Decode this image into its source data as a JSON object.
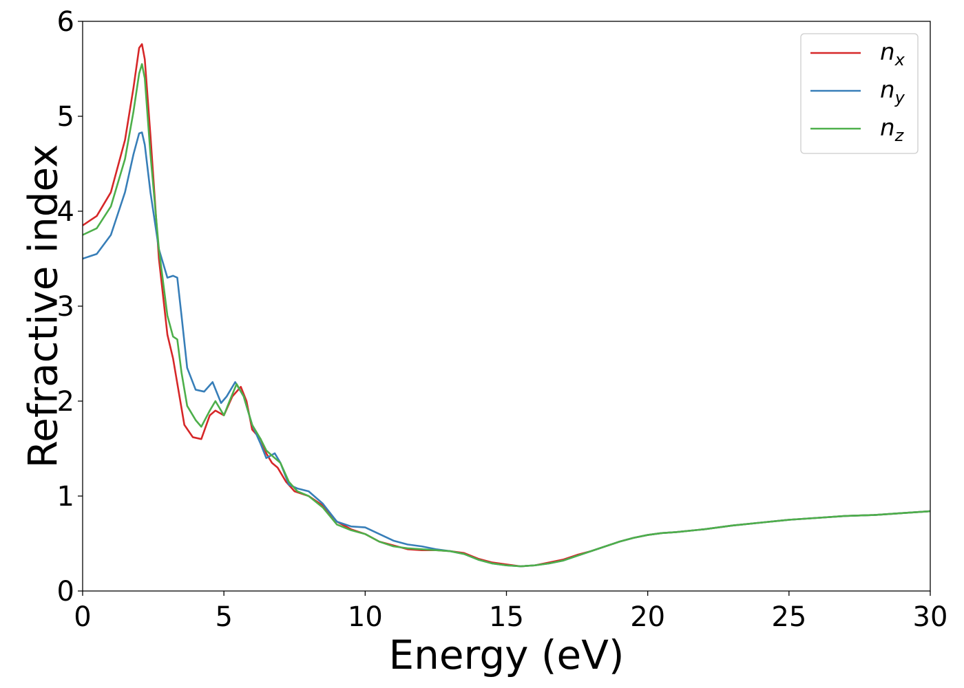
{
  "chart_data": {
    "type": "line",
    "xlabel": "Energy (eV)",
    "ylabel": "Refractive index",
    "xlim": [
      0,
      30
    ],
    "ylim": [
      0,
      6
    ],
    "xticks": [
      0,
      5,
      10,
      15,
      20,
      25,
      30
    ],
    "yticks": [
      0,
      1,
      2,
      3,
      4,
      5,
      6
    ],
    "grid": false,
    "legend_position": "top-right",
    "series": [
      {
        "name": "n",
        "subscript": "x",
        "color": "#d62728",
        "x": [
          0,
          0.5,
          1.0,
          1.5,
          1.8,
          2.0,
          2.1,
          2.2,
          2.4,
          2.7,
          3.0,
          3.2,
          3.4,
          3.6,
          3.9,
          4.2,
          4.5,
          4.7,
          5.0,
          5.3,
          5.6,
          5.8,
          6.0,
          6.3,
          6.5,
          6.7,
          6.9,
          7.2,
          7.5,
          8.0,
          8.5,
          9.0,
          9.5,
          10.0,
          10.5,
          11.0,
          11.5,
          12.0,
          12.5,
          13.0,
          13.5,
          14.0,
          14.5,
          15.0,
          15.5,
          16.0,
          16.5,
          17.0,
          17.5,
          18.0,
          18.5,
          19.0,
          19.5,
          20.0,
          20.5,
          21.0,
          22.0,
          23.0,
          24.0,
          25.0,
          26.0,
          27.0,
          28.0,
          29.0,
          30.0
        ],
        "values": [
          3.85,
          3.95,
          4.2,
          4.75,
          5.3,
          5.72,
          5.76,
          5.6,
          4.8,
          3.5,
          2.7,
          2.45,
          2.1,
          1.75,
          1.62,
          1.6,
          1.85,
          1.9,
          1.85,
          2.05,
          2.15,
          2.0,
          1.7,
          1.6,
          1.45,
          1.35,
          1.3,
          1.15,
          1.05,
          1.0,
          0.9,
          0.73,
          0.65,
          0.6,
          0.52,
          0.48,
          0.44,
          0.43,
          0.43,
          0.42,
          0.4,
          0.34,
          0.3,
          0.28,
          0.26,
          0.27,
          0.3,
          0.33,
          0.38,
          0.42,
          0.47,
          0.52,
          0.56,
          0.59,
          0.61,
          0.62,
          0.65,
          0.69,
          0.72,
          0.75,
          0.77,
          0.79,
          0.8,
          0.82,
          0.84
        ]
      },
      {
        "name": "n",
        "subscript": "y",
        "color": "#377eb8",
        "x": [
          0,
          0.5,
          1.0,
          1.5,
          1.8,
          2.0,
          2.1,
          2.2,
          2.4,
          2.7,
          3.0,
          3.2,
          3.35,
          3.5,
          3.7,
          4.0,
          4.3,
          4.6,
          4.9,
          5.1,
          5.4,
          5.7,
          6.0,
          6.3,
          6.5,
          6.8,
          7.0,
          7.3,
          7.6,
          8.0,
          8.5,
          9.0,
          9.5,
          10.0,
          10.5,
          11.0,
          11.5,
          12.0,
          12.5,
          13.0,
          13.5,
          14.0,
          14.5,
          15.0,
          15.5,
          16.0,
          16.5,
          17.0,
          17.5,
          18.0,
          18.5,
          19.0,
          19.5,
          20.0,
          20.5,
          21.0,
          22.0,
          23.0,
          24.0,
          25.0,
          26.0,
          27.0,
          28.0,
          29.0,
          30.0
        ],
        "values": [
          3.5,
          3.55,
          3.75,
          4.2,
          4.6,
          4.82,
          4.83,
          4.7,
          4.2,
          3.6,
          3.3,
          3.32,
          3.3,
          2.9,
          2.35,
          2.12,
          2.1,
          2.2,
          1.98,
          2.05,
          2.2,
          2.05,
          1.75,
          1.55,
          1.4,
          1.45,
          1.35,
          1.12,
          1.08,
          1.05,
          0.92,
          0.73,
          0.68,
          0.67,
          0.6,
          0.53,
          0.49,
          0.47,
          0.44,
          0.42,
          0.39,
          0.33,
          0.29,
          0.27,
          0.26,
          0.27,
          0.29,
          0.32,
          0.37,
          0.42,
          0.47,
          0.52,
          0.56,
          0.59,
          0.61,
          0.62,
          0.65,
          0.69,
          0.72,
          0.75,
          0.77,
          0.79,
          0.8,
          0.82,
          0.84
        ]
      },
      {
        "name": "n",
        "subscript": "z",
        "color": "#4daf4a",
        "x": [
          0,
          0.5,
          1.0,
          1.5,
          1.8,
          2.0,
          2.1,
          2.2,
          2.4,
          2.7,
          3.0,
          3.2,
          3.35,
          3.5,
          3.7,
          4.0,
          4.2,
          4.5,
          4.7,
          5.0,
          5.2,
          5.45,
          5.7,
          6.0,
          6.3,
          6.5,
          6.8,
          7.0,
          7.3,
          7.6,
          8.0,
          8.5,
          9.0,
          9.5,
          10.0,
          10.5,
          11.0,
          11.5,
          12.0,
          12.5,
          13.0,
          13.5,
          14.0,
          14.5,
          15.0,
          15.5,
          16.0,
          16.5,
          17.0,
          17.5,
          18.0,
          18.5,
          19.0,
          19.5,
          20.0,
          20.5,
          21.0,
          22.0,
          23.0,
          24.0,
          25.0,
          26.0,
          27.0,
          28.0,
          29.0,
          30.0
        ],
        "values": [
          3.75,
          3.82,
          4.05,
          4.55,
          5.05,
          5.45,
          5.55,
          5.4,
          4.6,
          3.6,
          2.9,
          2.68,
          2.65,
          2.3,
          1.95,
          1.8,
          1.73,
          1.9,
          2.0,
          1.85,
          2.0,
          2.18,
          2.05,
          1.75,
          1.6,
          1.48,
          1.4,
          1.35,
          1.15,
          1.05,
          1.0,
          0.88,
          0.7,
          0.64,
          0.6,
          0.52,
          0.47,
          0.45,
          0.44,
          0.43,
          0.42,
          0.39,
          0.33,
          0.29,
          0.27,
          0.26,
          0.27,
          0.29,
          0.32,
          0.37,
          0.42,
          0.47,
          0.52,
          0.56,
          0.59,
          0.61,
          0.62,
          0.65,
          0.69,
          0.72,
          0.75,
          0.77,
          0.79,
          0.8,
          0.82,
          0.84
        ]
      }
    ]
  }
}
